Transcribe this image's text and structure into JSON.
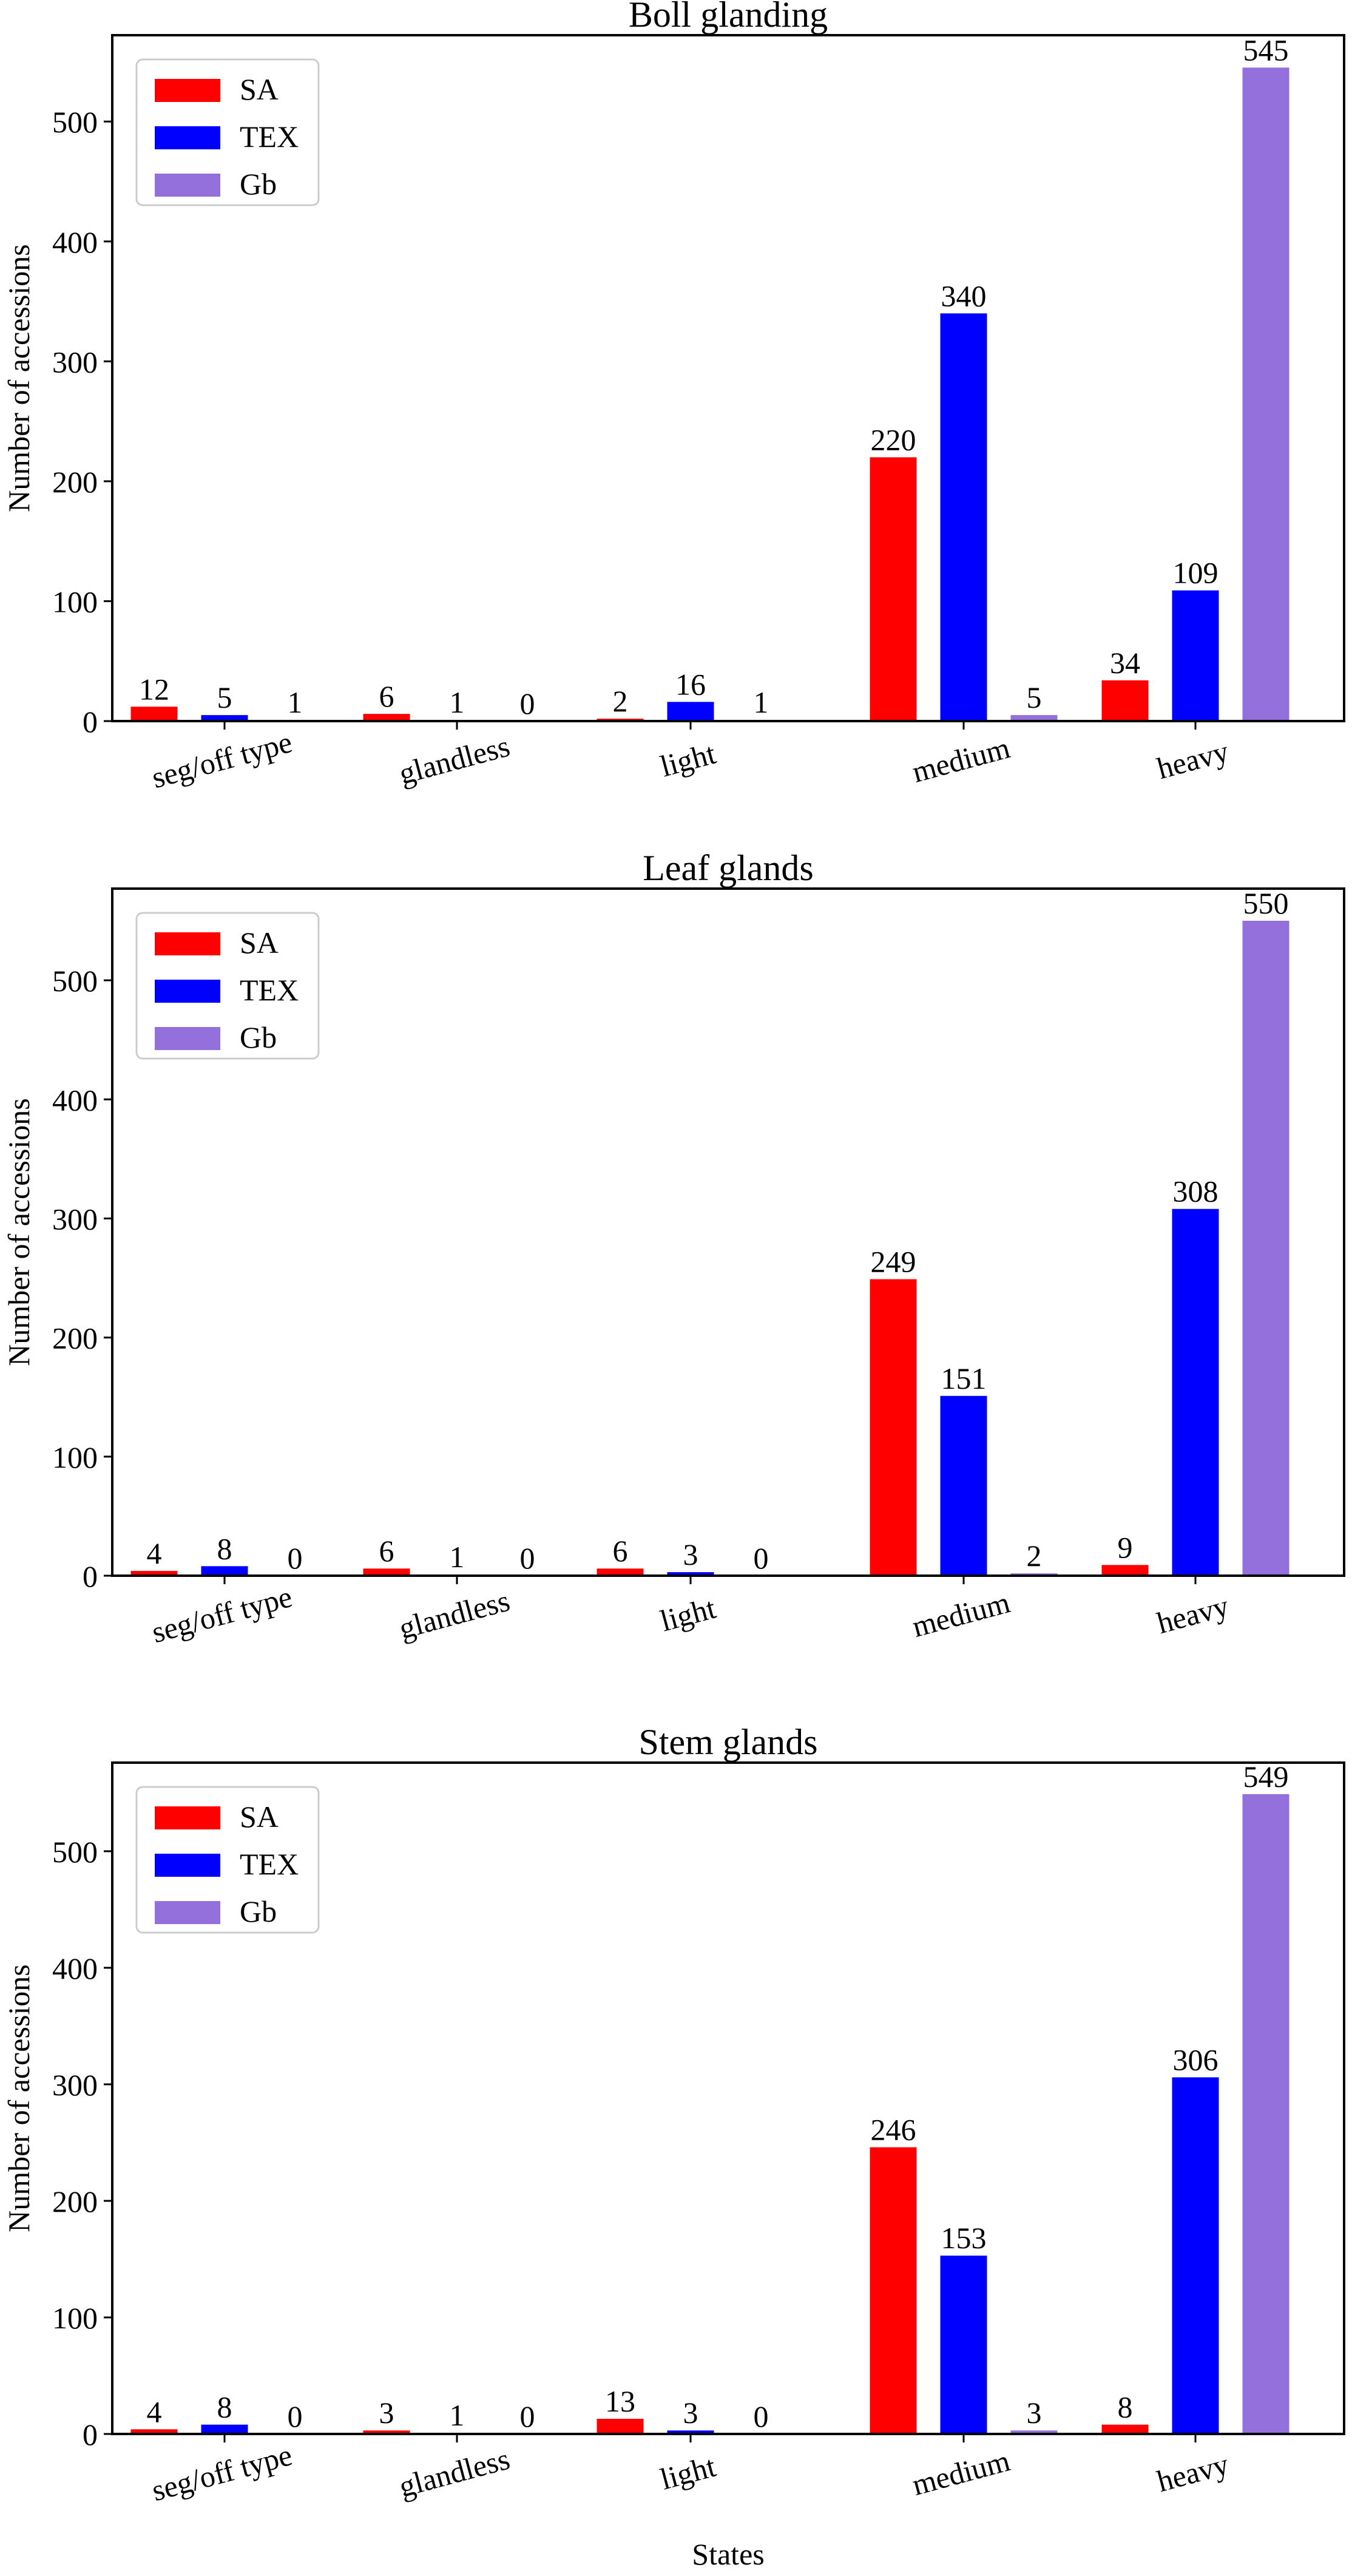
{
  "figure": {
    "xlabel": "States"
  },
  "chart_data": [
    {
      "type": "bar",
      "title": "Boll glanding",
      "ylabel": "Number of accessions",
      "xlabel": "",
      "ylim": [
        0,
        572
      ],
      "yticks": [
        0,
        100,
        200,
        300,
        400,
        500
      ],
      "categories": [
        "seg/off type",
        "glandless",
        "light",
        "medium",
        "heavy"
      ],
      "legend_position": "top-left",
      "series": [
        {
          "name": "SA",
          "color": "#ff0000",
          "values": [
            12,
            6,
            2,
            220,
            34
          ]
        },
        {
          "name": "TEX",
          "color": "#0000ff",
          "values": [
            5,
            1,
            16,
            340,
            109
          ]
        },
        {
          "name": "Gb",
          "color": "#9370db",
          "values": [
            1,
            0,
            1,
            5,
            545
          ]
        }
      ]
    },
    {
      "type": "bar",
      "title": "Leaf glands",
      "ylabel": "Number of accessions",
      "xlabel": "",
      "ylim": [
        0,
        577
      ],
      "yticks": [
        0,
        100,
        200,
        300,
        400,
        500
      ],
      "categories": [
        "seg/off type",
        "glandless",
        "light",
        "medium",
        "heavy"
      ],
      "legend_position": "top-left",
      "series": [
        {
          "name": "SA",
          "color": "#ff0000",
          "values": [
            4,
            6,
            6,
            249,
            9
          ]
        },
        {
          "name": "TEX",
          "color": "#0000ff",
          "values": [
            8,
            1,
            3,
            151,
            308
          ]
        },
        {
          "name": "Gb",
          "color": "#9370db",
          "values": [
            0,
            0,
            0,
            2,
            550
          ]
        }
      ]
    },
    {
      "type": "bar",
      "title": "Stem glands",
      "ylabel": "Number of accessions",
      "xlabel": "States",
      "ylim": [
        0,
        576
      ],
      "yticks": [
        0,
        100,
        200,
        300,
        400,
        500
      ],
      "categories": [
        "seg/off type",
        "glandless",
        "light",
        "medium",
        "heavy"
      ],
      "legend_position": "top-left",
      "series": [
        {
          "name": "SA",
          "color": "#ff0000",
          "values": [
            4,
            3,
            13,
            246,
            8
          ]
        },
        {
          "name": "TEX",
          "color": "#0000ff",
          "values": [
            8,
            1,
            3,
            153,
            306
          ]
        },
        {
          "name": "Gb",
          "color": "#9370db",
          "values": [
            0,
            0,
            0,
            3,
            549
          ]
        }
      ]
    }
  ]
}
